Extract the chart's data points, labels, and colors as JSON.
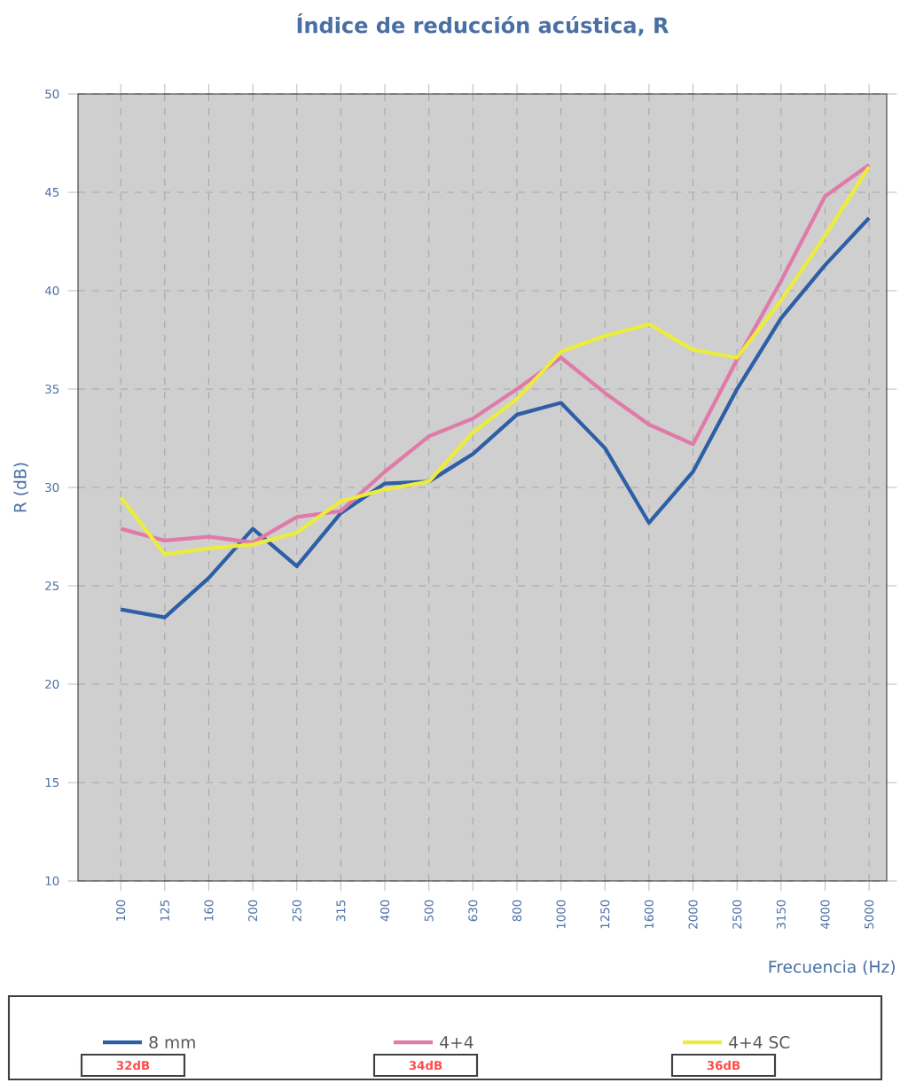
{
  "chart_data": {
    "type": "line",
    "title": "Índice de reducción acústica, R",
    "xlabel": "Frecuencia (Hz)",
    "ylabel": "R (dB)",
    "categories": [
      "100",
      "125",
      "160",
      "200",
      "250",
      "315",
      "400",
      "500",
      "630",
      "800",
      "1000",
      "1250",
      "1600",
      "2000",
      "2500",
      "3150",
      "4000",
      "5000"
    ],
    "series": [
      {
        "name": "8 mm",
        "color": "#2e5fa6",
        "values": [
          23.8,
          23.4,
          25.4,
          27.9,
          26.0,
          28.7,
          30.2,
          30.3,
          31.7,
          33.7,
          34.3,
          32.0,
          28.2,
          30.8,
          35.0,
          38.6,
          41.3,
          43.7
        ]
      },
      {
        "name": "4+4",
        "color": "#e07aa8",
        "values": [
          27.9,
          27.3,
          27.5,
          27.2,
          28.5,
          28.8,
          30.8,
          32.6,
          33.5,
          35.0,
          36.6,
          34.8,
          33.2,
          32.2,
          36.5,
          40.5,
          44.8,
          46.4
        ]
      },
      {
        "name": "4+4 SC",
        "color": "#ecec3c",
        "values": [
          29.5,
          26.6,
          26.9,
          27.1,
          27.7,
          29.3,
          29.9,
          30.3,
          32.8,
          34.5,
          36.9,
          37.7,
          38.3,
          37.0,
          36.6,
          39.5,
          42.8,
          46.3
        ]
      }
    ],
    "ylim": [
      10,
      50
    ],
    "yticks": [
      10,
      15,
      20,
      25,
      30,
      35,
      40,
      45,
      50
    ],
    "grid": true,
    "legend": "bottom",
    "line_style": "solid",
    "marker": "none",
    "annotations": [
      "32dB",
      "34dB",
      "36dB"
    ]
  }
}
